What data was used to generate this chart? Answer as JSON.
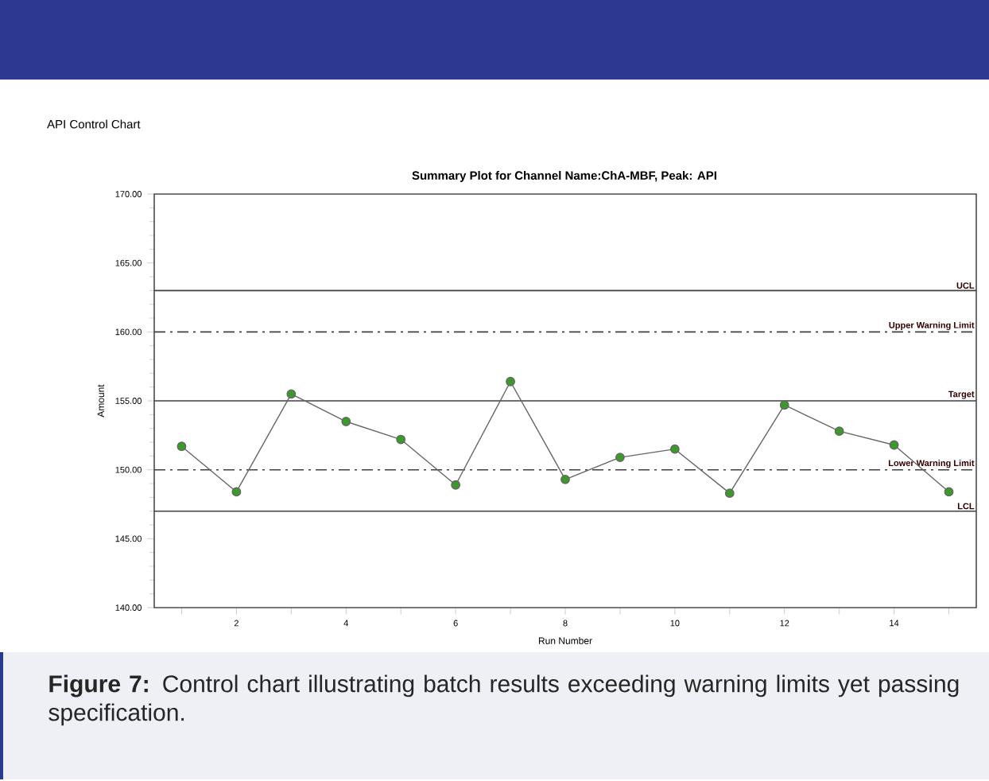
{
  "chart_data": {
    "type": "line",
    "title": "API Control Chart",
    "subtitle": "Summary Plot for Channel Name:ChA-MBF, Peak: API",
    "xlabel": "Run Number",
    "ylabel": "Amount",
    "x": [
      1,
      2,
      3,
      4,
      5,
      6,
      7,
      8,
      9,
      10,
      11,
      12,
      13,
      14,
      15
    ],
    "series": [
      {
        "color": "#3a9a2a",
        "values": [
          151.7,
          148.4,
          155.5,
          153.5,
          152.2,
          148.9,
          156.4,
          149.3,
          150.9,
          151.5,
          148.3,
          154.7,
          152.8,
          151.8,
          148.4
        ]
      }
    ],
    "xlim": [
      0.5,
      15.5
    ],
    "ylim": [
      140,
      170
    ],
    "xticks": [
      {
        "value": 1,
        "label": null
      },
      2,
      {
        "value": 3,
        "label": null
      },
      4,
      {
        "value": 5,
        "label": null
      },
      6,
      {
        "value": 7,
        "label": null
      },
      8,
      {
        "value": 9,
        "label": null
      },
      10,
      {
        "value": 11,
        "label": null
      },
      12,
      {
        "value": 13,
        "label": null
      },
      14,
      {
        "value": 15,
        "label": null
      }
    ],
    "yticks": [
      {
        "value": 140,
        "label": "140.00"
      },
      {
        "value": 145,
        "label": "145.00"
      },
      {
        "value": 150,
        "label": "150.00"
      },
      {
        "value": 155,
        "label": "155.00"
      },
      {
        "value": 160,
        "label": "160.00"
      },
      {
        "value": 165,
        "label": "165.00"
      },
      {
        "value": 170,
        "label": "170.00"
      }
    ],
    "ref_lines": [
      {
        "axis": "y",
        "value": 163,
        "label": "UCL",
        "line_style": "solid"
      },
      {
        "axis": "y",
        "value": 160,
        "label": "Upper Warning Limit",
        "line_style": "dashed"
      },
      {
        "axis": "y",
        "value": 155,
        "label": "Target",
        "line_style": "solid"
      },
      {
        "axis": "y",
        "value": 150,
        "label": "Lower Warning Limit",
        "line_style": "dashed"
      },
      {
        "axis": "y",
        "value": 147,
        "label": "LCL",
        "line_style": "solid"
      }
    ],
    "marker": "circle",
    "line_style": "solid",
    "grid": false,
    "annotations": [
      "**Figure 7:** Control chart illustrating batch results exceeding warning limits yet passing specification."
    ]
  }
}
